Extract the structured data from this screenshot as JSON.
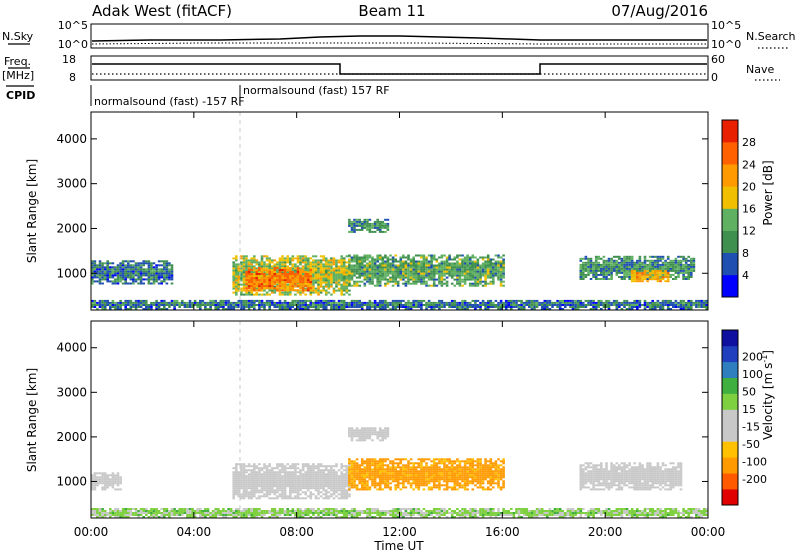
{
  "header": {
    "left": "Adak West (fitACF)",
    "center": "Beam 11",
    "right": "07/Aug/2016"
  },
  "strips": {
    "nsky_label": "N.Sky",
    "nsearch_label": "N.Search",
    "noise_ticks": [
      "10^5",
      "10^0"
    ],
    "freq_label": "Freq.",
    "freq_unit": "[MHz]",
    "freq_ticks": [
      18,
      8
    ],
    "nave_label": "Nave",
    "nave_ticks": [
      60,
      0
    ],
    "cpid_label": "CPID",
    "cpid_entries": [
      {
        "text": "normalsound (fast) -157 RF",
        "start_hour": 0
      },
      {
        "text": "normalsound (fast) 157 RF",
        "start_hour": 6
      }
    ]
  },
  "colors": {
    "power_scale": [
      "#0000ff",
      "#1f4fb0",
      "#3f8f4f",
      "#5fb060",
      "#f0c000",
      "#ff9a00",
      "#ff6000",
      "#e82000"
    ],
    "velocity_scale": [
      "#e00000",
      "#ff5a00",
      "#ff9a00",
      "#ffc000",
      "#c8c8c8",
      "#c8c8c8",
      "#7fd040",
      "#3fb040",
      "#2f7fbf",
      "#1f3fbf",
      "#1010a0"
    ]
  },
  "chart_data": [
    {
      "type": "heatmap",
      "name": "power",
      "title": "",
      "xlabel": "Time UT",
      "ylabel": "Slant Range [km]",
      "xlim": [
        0,
        24
      ],
      "ylim": [
        180,
        4600
      ],
      "x_ticks": [
        "00:00",
        "04:00",
        "08:00",
        "12:00",
        "16:00",
        "20:00",
        "00:00"
      ],
      "y_ticks": [
        1000,
        2000,
        3000,
        4000
      ],
      "colorbar": {
        "label": "Power [dB]",
        "min": 0,
        "max": 32,
        "ticks": [
          4,
          8,
          12,
          16,
          20,
          24,
          28
        ]
      },
      "echo_regions": [
        {
          "t0": 0.0,
          "t1": 3.2,
          "r0": 750,
          "r1": 1250,
          "level": 8
        },
        {
          "t0": 5.5,
          "t1": 10.0,
          "r0": 500,
          "r1": 1400,
          "level": 16
        },
        {
          "t0": 6.0,
          "t1": 8.5,
          "r0": 600,
          "r1": 1100,
          "level": 24
        },
        {
          "t0": 10.0,
          "t1": 16.0,
          "r0": 700,
          "r1": 1400,
          "level": 12
        },
        {
          "t0": 10.0,
          "t1": 11.5,
          "r0": 1900,
          "r1": 2200,
          "level": 10
        },
        {
          "t0": 19.0,
          "t1": 23.5,
          "r0": 850,
          "r1": 1350,
          "level": 10
        },
        {
          "t0": 21.0,
          "t1": 22.5,
          "r0": 800,
          "r1": 1050,
          "level": 20
        },
        {
          "t0": 0.0,
          "t1": 24.0,
          "r0": 180,
          "r1": 380,
          "level": 8
        }
      ]
    },
    {
      "type": "heatmap",
      "name": "velocity",
      "title": "",
      "xlabel": "Time UT",
      "ylabel": "Slant Range [km]",
      "xlim": [
        0,
        24
      ],
      "ylim": [
        180,
        4600
      ],
      "x_ticks": [
        "00:00",
        "04:00",
        "08:00",
        "12:00",
        "16:00",
        "20:00",
        "00:00"
      ],
      "y_ticks": [
        1000,
        2000,
        3000,
        4000
      ],
      "colorbar": {
        "label": "Velocity [m s^-1]",
        "ticks": [
          -200,
          -100,
          -50,
          -15,
          15,
          50,
          100,
          200
        ]
      },
      "echo_regions": [
        {
          "t0": 0.0,
          "t1": 1.2,
          "r0": 800,
          "r1": 1200,
          "level": 0
        },
        {
          "t0": 5.5,
          "t1": 10.0,
          "r0": 600,
          "r1": 1400,
          "level": 0
        },
        {
          "t0": 10.0,
          "t1": 11.5,
          "r0": 1900,
          "r1": 2200,
          "level": 0
        },
        {
          "t0": 10.0,
          "t1": 16.0,
          "r0": 800,
          "r1": 1500,
          "level": -40
        },
        {
          "t0": 19.0,
          "t1": 23.0,
          "r0": 800,
          "r1": 1400,
          "level": 0
        },
        {
          "t0": 0.0,
          "t1": 24.0,
          "r0": 180,
          "r1": 380,
          "level": 20
        }
      ]
    }
  ]
}
